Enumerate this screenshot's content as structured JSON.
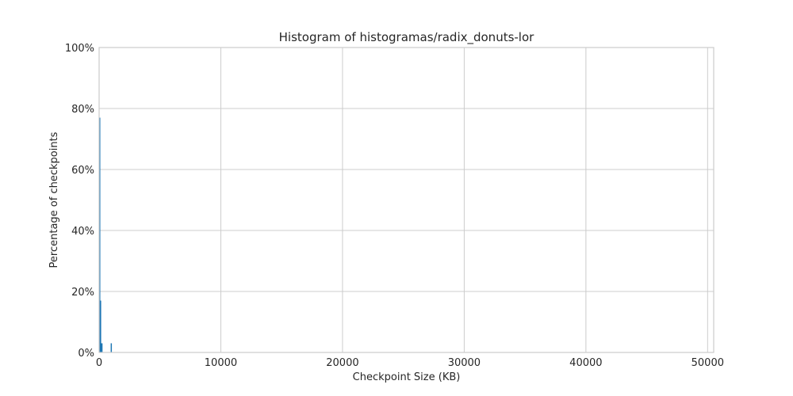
{
  "chart_data": {
    "type": "bar",
    "title": "Histogram of histogramas/radix_donuts-lor",
    "xlabel": "Checkpoint Size (KB)",
    "ylabel": "Percentage of checkpoints",
    "xlim": [
      0,
      50500
    ],
    "ylim": [
      0,
      100
    ],
    "x_ticks": [
      0,
      10000,
      20000,
      30000,
      40000,
      50000
    ],
    "x_tick_labels": [
      "0",
      "10000",
      "20000",
      "30000",
      "40000",
      "50000"
    ],
    "y_ticks": [
      0,
      20,
      40,
      60,
      80,
      100
    ],
    "y_tick_labels": [
      "0%",
      "20%",
      "40%",
      "60%",
      "80%",
      "100%"
    ],
    "grid": true,
    "color": "#1f77b4",
    "bins": [
      {
        "x0": 0,
        "x1": 70,
        "value": 77
      },
      {
        "x0": 70,
        "x1": 140,
        "value": 17
      },
      {
        "x0": 140,
        "x1": 280,
        "value": 3
      },
      {
        "x0": 950,
        "x1": 1020,
        "value": 3
      }
    ]
  }
}
